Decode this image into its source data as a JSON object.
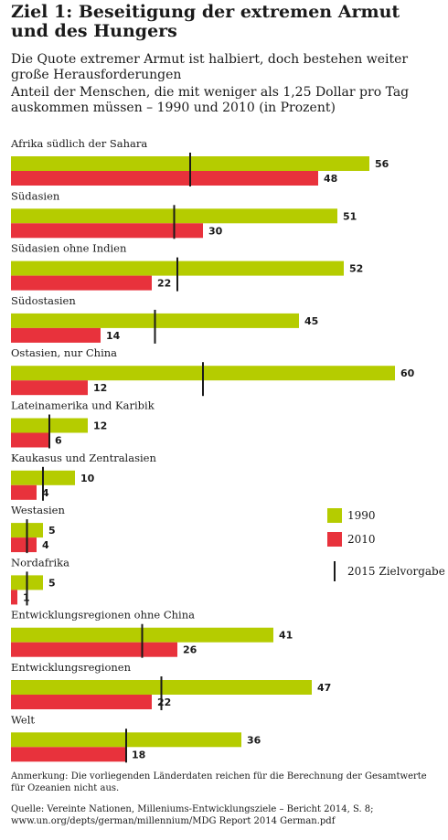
{
  "header": {
    "title": "Ziel 1: Beseitigung der extremen Armut und des Hungers",
    "subtitle": "Die Quote extremer Armut ist halbiert, doch bestehen weiter große Herausforderungen",
    "description": "Anteil der Menschen, die mit weniger als 1,25 Dollar pro Tag auskommen müssen – 1990 und 2010 (in Prozent)"
  },
  "footer": {
    "note": "Anmerkung: Die vorliegenden Länderdaten reichen für die Berechnung der Gesamtwerte für Ozeanien nicht aus.",
    "source": "Quelle: Vereinte Nationen, Milleniums-Entwicklungsziele – Bericht 2014, S. 8; www.un.org/depts/german/millennium/MDG Report 2014 German.pdf"
  },
  "colors": {
    "series_1990": "#b5cc00",
    "series_2010": "#e8323c",
    "target_marker": "#1a1a1a"
  },
  "chart_data": {
    "type": "bar",
    "orientation": "horizontal",
    "title": "",
    "xlabel": "",
    "ylabel": "",
    "xlim": [
      0,
      60
    ],
    "grid": false,
    "legend_position": "right",
    "categories": [
      "Afrika südlich der Sahara",
      "Südasien",
      "Südasien ohne Indien",
      "Südostasien",
      "Ostasien, nur China",
      "Lateinamerika und Karibik",
      "Kaukasus und Zentralasien",
      "Westasien",
      "Nordafrika",
      "Entwicklungsregionen ohne China",
      "Entwicklungsregionen",
      "Welt"
    ],
    "series": [
      {
        "name": "1990",
        "values": [
          56,
          51,
          52,
          45,
          60,
          12,
          10,
          5,
          5,
          41,
          47,
          36
        ]
      },
      {
        "name": "2010",
        "values": [
          48,
          30,
          22,
          14,
          12,
          6,
          4,
          4,
          1,
          26,
          22,
          18
        ]
      }
    ],
    "target": {
      "name": "2015 Zielvorgabe",
      "values": [
        28,
        25.5,
        26,
        22.5,
        30,
        6,
        5,
        2.5,
        2.5,
        20.5,
        23.5,
        18
      ]
    }
  }
}
